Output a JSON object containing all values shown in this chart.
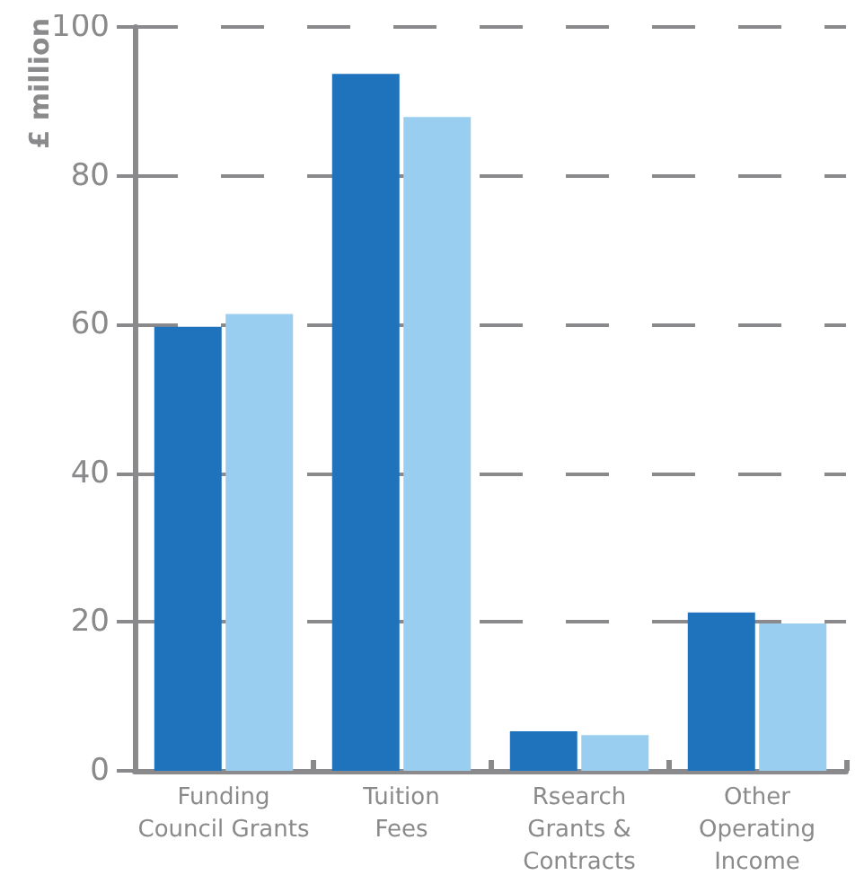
{
  "chart_data": {
    "type": "bar",
    "ylabel": "£ million",
    "categories": [
      "Funding\nCouncil Grants",
      "Tuition\nFees",
      "Rsearch\nGrants &\nContracts",
      "Other\nOperating\nIncome"
    ],
    "series": [
      {
        "color": "#1f73bd",
        "values": [
          59.7,
          93.7,
          5.3,
          21.3
        ]
      },
      {
        "color": "#99cef0",
        "values": [
          61.4,
          87.9,
          4.8,
          19.8
        ]
      }
    ],
    "ylim": [
      0,
      100
    ],
    "yticks": [
      0,
      20,
      40,
      60,
      80,
      100
    ],
    "grid": "y"
  }
}
